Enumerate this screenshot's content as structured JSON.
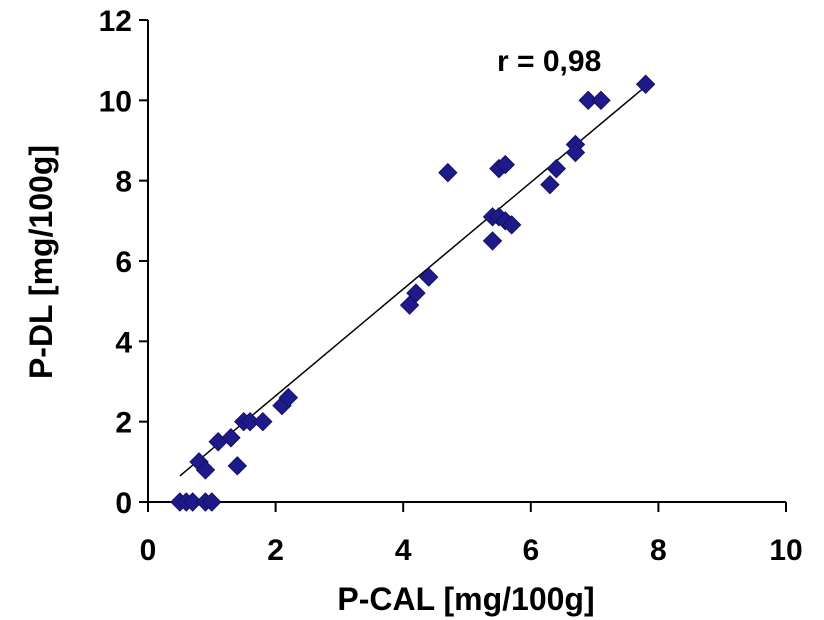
{
  "chart_data": {
    "type": "scatter",
    "title": "",
    "xlabel": "P-CAL [mg/100g]",
    "ylabel": "P-DL [mg/100g]",
    "xlim": [
      0,
      10
    ],
    "ylim": [
      0,
      12
    ],
    "x_ticks": [
      "0",
      "2",
      "4",
      "6",
      "8",
      "10"
    ],
    "y_ticks": [
      "0",
      "2",
      "4",
      "6",
      "8",
      "10",
      "12"
    ],
    "x_tick_values": [
      0,
      2,
      4,
      6,
      8,
      10
    ],
    "y_tick_values": [
      0,
      2,
      4,
      6,
      8,
      10,
      12
    ],
    "grid": false,
    "legend": "none",
    "marker": "diamond",
    "marker_color": "#1f1a8c",
    "annotation": "r = 0,98",
    "trendline": {
      "type": "linear",
      "x": [
        0.5,
        7.8
      ],
      "y": [
        0.65,
        10.35
      ]
    },
    "series": [
      {
        "points": [
          [
            0.5,
            0.0
          ],
          [
            0.6,
            0.0
          ],
          [
            0.7,
            0.0
          ],
          [
            0.9,
            0.0
          ],
          [
            1.0,
            0.0
          ],
          [
            0.8,
            1.0
          ],
          [
            0.9,
            0.8
          ],
          [
            1.1,
            1.5
          ],
          [
            1.3,
            1.6
          ],
          [
            1.4,
            0.9
          ],
          [
            1.5,
            2.0
          ],
          [
            1.6,
            2.0
          ],
          [
            1.8,
            2.0
          ],
          [
            2.1,
            2.4
          ],
          [
            2.2,
            2.6
          ],
          [
            4.1,
            4.9
          ],
          [
            4.2,
            5.2
          ],
          [
            4.4,
            5.6
          ],
          [
            4.7,
            8.2
          ],
          [
            5.4,
            7.1
          ],
          [
            5.4,
            6.5
          ],
          [
            5.5,
            8.3
          ],
          [
            5.5,
            7.1
          ],
          [
            5.6,
            8.4
          ],
          [
            5.6,
            7.0
          ],
          [
            5.7,
            6.9
          ],
          [
            6.3,
            7.9
          ],
          [
            6.4,
            8.3
          ],
          [
            6.7,
            8.9
          ],
          [
            6.7,
            8.7
          ],
          [
            6.9,
            10.0
          ],
          [
            7.1,
            10.0
          ],
          [
            7.8,
            10.4
          ]
        ]
      }
    ]
  }
}
